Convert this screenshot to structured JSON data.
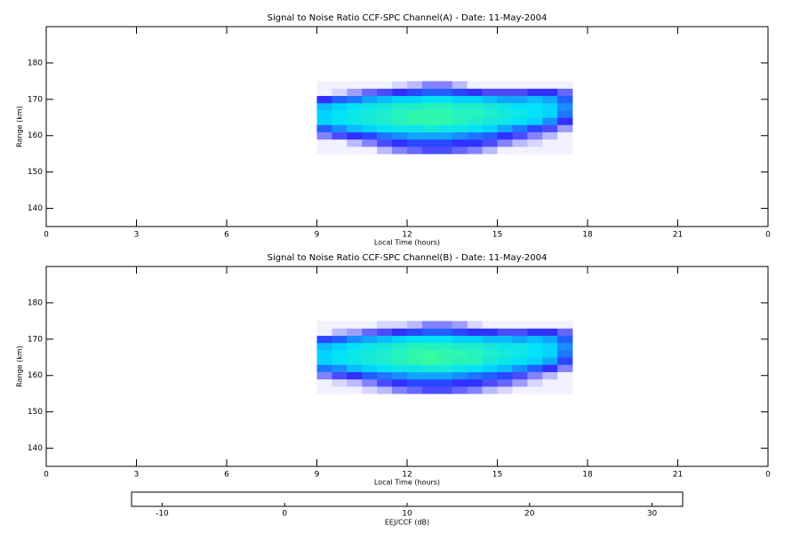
{
  "chart_data": [
    {
      "type": "heatmap",
      "title": "Signal to Noise Ratio CCF-SPC Channel(A) - Date: 11-May-2004",
      "xlabel": "Local Time (hours)",
      "ylabel": "Range (km)",
      "xlim": [
        0,
        24
      ],
      "xticks": [
        0,
        3,
        6,
        9,
        12,
        15,
        18,
        21,
        {
          "value": 24,
          "label": "0"
        }
      ],
      "ylim": [
        135,
        190
      ],
      "yticks": [
        140,
        150,
        160,
        170,
        180
      ],
      "x": [
        9.25,
        9.75,
        10.25,
        10.75,
        11.25,
        11.75,
        12.25,
        12.75,
        13.25,
        13.75,
        14.25,
        14.75,
        15.25,
        15.75,
        16.25,
        16.75,
        17.25
      ],
      "y": [
        156,
        158,
        160,
        162,
        164,
        166,
        168,
        170,
        172,
        174
      ],
      "z": [
        [
          -12,
          -12,
          -12,
          -12,
          -10,
          -8,
          -7,
          -6,
          -6,
          -7,
          -8,
          -10,
          -12,
          -12,
          -12,
          -12,
          -12
        ],
        [
          -12,
          -12,
          -10,
          -8,
          -6,
          -5,
          -4,
          -4,
          -4,
          -5,
          -5,
          -6,
          -8,
          -10,
          -11,
          -12,
          -12
        ],
        [
          -8,
          -6,
          -5,
          -4,
          -2,
          -1,
          0,
          0,
          0,
          -1,
          -2,
          -3,
          -5,
          -6,
          -8,
          -10,
          -12
        ],
        [
          -3,
          -1,
          1,
          2,
          3,
          4,
          4,
          5,
          4,
          4,
          3,
          2,
          0,
          -2,
          -4,
          -6,
          -9
        ],
        [
          2,
          3,
          4,
          5,
          6,
          7,
          8,
          8,
          8,
          7,
          6,
          5,
          4,
          3,
          2,
          -1,
          -5
        ],
        [
          2,
          3,
          4,
          5,
          6,
          7,
          8,
          8,
          8,
          7,
          7,
          6,
          5,
          4,
          3,
          2,
          -2
        ],
        [
          1,
          2,
          3,
          4,
          5,
          6,
          6,
          7,
          7,
          6,
          6,
          5,
          4,
          3,
          3,
          2,
          -1
        ],
        [
          -5,
          -3,
          -2,
          0,
          1,
          2,
          2,
          3,
          3,
          2,
          2,
          1,
          0,
          0,
          1,
          0,
          -3
        ],
        [
          -12,
          -11,
          -9,
          -7,
          -6,
          -5,
          -4,
          -3,
          -3,
          -4,
          -5,
          -6,
          -6,
          -6,
          -5,
          -5,
          -7
        ],
        [
          -12,
          -12,
          -12,
          -12,
          -12,
          -11,
          -10,
          -8,
          -8,
          -10,
          -12,
          -12,
          -12,
          -12,
          -12,
          -12,
          -12
        ]
      ]
    },
    {
      "type": "heatmap",
      "title": "Signal to Noise Ratio CCF-SPC Channel(B) - Date: 11-May-2004",
      "xlabel": "Local Time (hours)",
      "ylabel": "Range (km)",
      "xlim": [
        0,
        24
      ],
      "xticks": [
        0,
        3,
        6,
        9,
        12,
        15,
        18,
        21,
        {
          "value": 24,
          "label": "0"
        }
      ],
      "ylim": [
        135,
        190
      ],
      "yticks": [
        140,
        150,
        160,
        170,
        180
      ],
      "x": [
        9.25,
        9.75,
        10.25,
        10.75,
        11.25,
        11.75,
        12.25,
        12.75,
        13.25,
        13.75,
        14.25,
        14.75,
        15.25,
        15.75,
        16.25,
        16.75,
        17.25
      ],
      "y": [
        156,
        158,
        160,
        162,
        164,
        166,
        168,
        170,
        172,
        174
      ],
      "z": [
        [
          -12,
          -12,
          -12,
          -11,
          -10,
          -8,
          -7,
          -6,
          -6,
          -7,
          -8,
          -10,
          -11,
          -12,
          -12,
          -12,
          -12
        ],
        [
          -12,
          -11,
          -10,
          -8,
          -6,
          -5,
          -4,
          -4,
          -4,
          -5,
          -5,
          -6,
          -7,
          -9,
          -11,
          -12,
          -12
        ],
        [
          -8,
          -6,
          -5,
          -3,
          -2,
          -1,
          0,
          0,
          0,
          -1,
          -2,
          -3,
          -4,
          -6,
          -8,
          -10,
          -12
        ],
        [
          -2,
          -1,
          1,
          2,
          3,
          4,
          4,
          5,
          5,
          4,
          3,
          2,
          1,
          -1,
          -3,
          -5,
          -8
        ],
        [
          2,
          3,
          4,
          5,
          6,
          7,
          8,
          9,
          8,
          7,
          7,
          5,
          4,
          3,
          2,
          0,
          -4
        ],
        [
          2,
          3,
          4,
          5,
          6,
          7,
          8,
          9,
          8,
          8,
          7,
          6,
          5,
          4,
          3,
          2,
          -2
        ],
        [
          1,
          2,
          3,
          4,
          5,
          6,
          7,
          7,
          7,
          6,
          6,
          5,
          4,
          4,
          3,
          2,
          -1
        ],
        [
          -4,
          -3,
          -1,
          0,
          1,
          2,
          3,
          3,
          3,
          2,
          2,
          1,
          1,
          0,
          1,
          0,
          -3
        ],
        [
          -12,
          -10,
          -9,
          -7,
          -6,
          -5,
          -4,
          -3,
          -3,
          -4,
          -5,
          -5,
          -6,
          -6,
          -5,
          -5,
          -7
        ],
        [
          -12,
          -12,
          -12,
          -12,
          -11,
          -11,
          -10,
          -8,
          -8,
          -9,
          -11,
          -12,
          -12,
          -12,
          -12,
          -12,
          -12
        ]
      ]
    }
  ],
  "colorbar": {
    "label": "EEJ/CCF (dB)",
    "zlim": [
      -12.5,
      32.5
    ],
    "zticks": [
      -10,
      0,
      10,
      20,
      30
    ],
    "colors": [
      "#ffffff",
      "#3030ff",
      "#00e0ff",
      "#40ff90",
      "#ffff00",
      "#ff8000",
      "#ff0000"
    ]
  }
}
